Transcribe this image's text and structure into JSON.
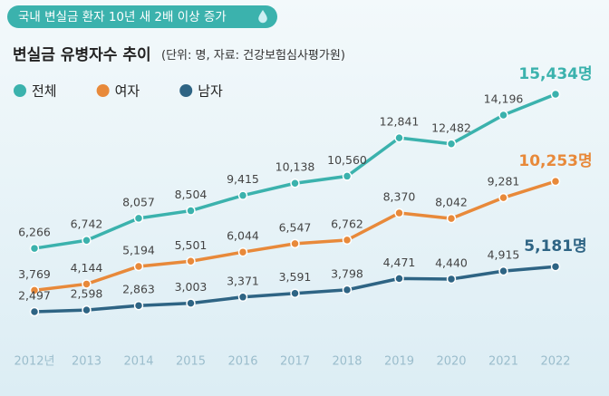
{
  "chart_data": {
    "type": "line",
    "title": "국내 변실금 환자 10년 새 2배 이상 증가",
    "subtitle": "변실금 유병자수 추이",
    "note": "(단위: 명, 자료: 건강보험심사평가원)",
    "categories": [
      "2012년",
      "2013",
      "2014",
      "2015",
      "2016",
      "2017",
      "2018",
      "2019",
      "2020",
      "2021",
      "2022"
    ],
    "legend": "top-left",
    "series": [
      {
        "name": "전체",
        "color": "#3bb2ad",
        "values": [
          6266,
          6742,
          8057,
          8504,
          9415,
          10138,
          10560,
          12841,
          12482,
          14196,
          15434
        ],
        "value_labels": [
          "6,266",
          "6,742",
          "8,057",
          "8,504",
          "9,415",
          "10,138",
          "10,560",
          "12,841",
          "12,482",
          "14,196",
          "15,434명"
        ]
      },
      {
        "name": "여자",
        "color": "#e8893a",
        "values": [
          3769,
          4144,
          5194,
          5501,
          6044,
          6547,
          6762,
          8370,
          8042,
          9281,
          10253
        ],
        "value_labels": [
          "3,769",
          "4,144",
          "5,194",
          "5,501",
          "6,044",
          "6,547",
          "6,762",
          "8,370",
          "8,042",
          "9,281",
          "10,253명"
        ]
      },
      {
        "name": "남자",
        "color": "#2e6484",
        "values": [
          2497,
          2598,
          2863,
          3003,
          3371,
          3591,
          3798,
          4471,
          4440,
          4915,
          5181
        ],
        "value_labels": [
          "2,497",
          "2,598",
          "2,863",
          "3,003",
          "3,371",
          "3,591",
          "3,798",
          "4,471",
          "4,440",
          "4,915",
          "5,181명"
        ]
      }
    ]
  }
}
